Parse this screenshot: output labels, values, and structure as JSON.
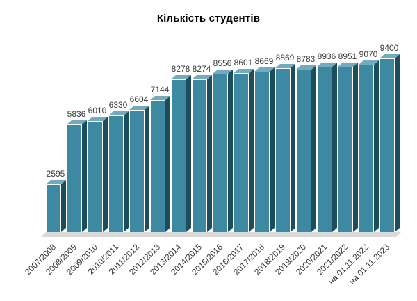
{
  "title": "Кількість студентів",
  "chart_data": {
    "type": "bar",
    "style": "3d-column",
    "title": "Кількість студентів",
    "xlabel": "",
    "ylabel": "",
    "categories": [
      "2007/2008",
      "2008/2009",
      "2009/2010",
      "2010/2011",
      "2011/2012",
      "2012/2013",
      "2013/2014",
      "2014/2015",
      "2015/2016",
      "2016/2017",
      "2017/2018",
      "2018/2019",
      "2019/2020",
      "2020/2021",
      "2021/2022",
      "на 01.11.2022",
      "на 01.11.2023"
    ],
    "values": [
      2595,
      5836,
      6010,
      6330,
      6604,
      7144,
      8278,
      8274,
      8556,
      8601,
      8669,
      8869,
      8783,
      8936,
      8951,
      9070,
      9400
    ],
    "value_labels_shown": true,
    "ylim": [
      0,
      9400
    ],
    "grid": false,
    "legend": false,
    "axes_shown": false,
    "colors": {
      "bar_front": "#3d89a1",
      "bar_top": "#74aabd",
      "bar_side": "#1d4c5c",
      "bar_edge": "#ffffff",
      "floor": "#d9d9d9",
      "title_color": "#000000",
      "value_label_color": "#3a3a3a",
      "tick_label_color": "#333333",
      "background": "#ffffff"
    }
  }
}
